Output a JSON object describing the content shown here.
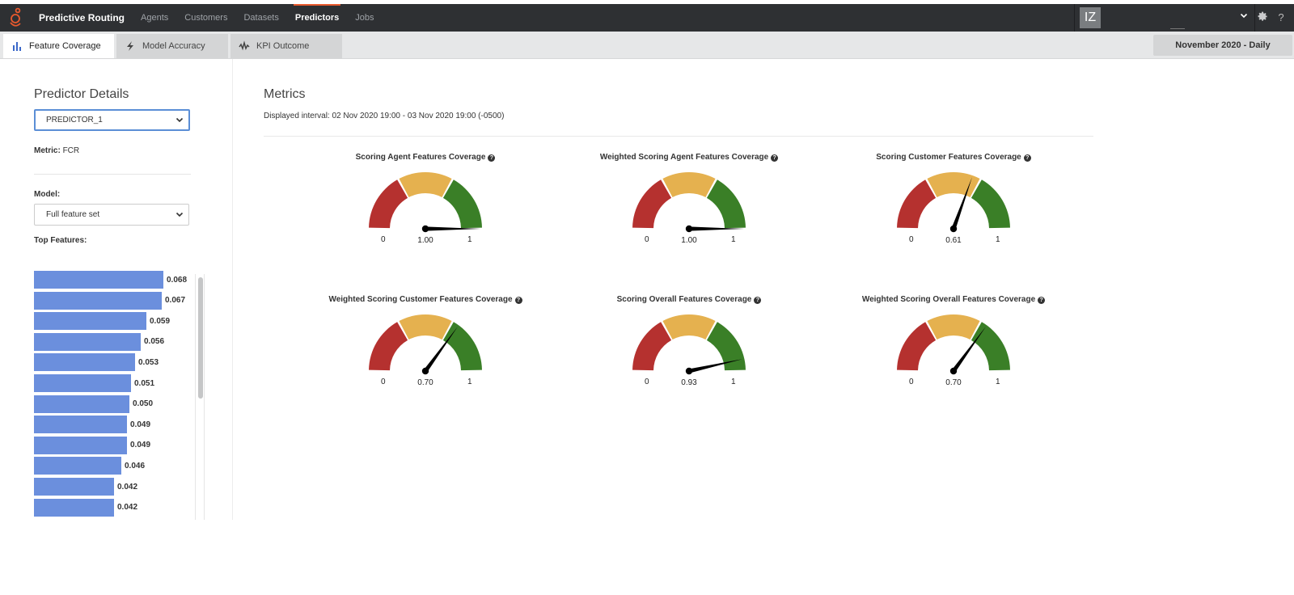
{
  "nav": {
    "app_title": "Predictive Routing",
    "items": [
      {
        "label": "Agents",
        "active": false
      },
      {
        "label": "Customers",
        "active": false
      },
      {
        "label": "Datasets",
        "active": false
      },
      {
        "label": "Predictors",
        "active": true
      },
      {
        "label": "Jobs",
        "active": false
      }
    ],
    "user_initials": "IZ",
    "icons": {
      "logo": "genesys-logo-icon",
      "settings": "gear-icon",
      "help": "help-icon",
      "user_menu": "chevron-down-icon"
    }
  },
  "tabs": [
    {
      "label": "Feature Coverage",
      "icon": "bar-chart-icon",
      "active": true
    },
    {
      "label": "Model Accuracy",
      "icon": "lightning-icon",
      "active": false
    },
    {
      "label": "KPI Outcome",
      "icon": "waveform-icon",
      "active": false
    }
  ],
  "date_range": "November 2020 - Daily",
  "predictor": {
    "heading": "Predictor Details",
    "selected": "PREDICTOR_1",
    "metric_label": "Metric:",
    "metric_value": "FCR",
    "model_label": "Model:",
    "model_selected": "Full feature set",
    "top_features_label": "Top Features:",
    "top_features": [
      0.068,
      0.067,
      0.059,
      0.056,
      0.053,
      0.051,
      0.05,
      0.049,
      0.049,
      0.046,
      0.042,
      0.042
    ],
    "top_features_labels": [
      "0.068",
      "0.067",
      "0.059",
      "0.056",
      "0.053",
      "0.051",
      "0.050",
      "0.049",
      "0.049",
      "0.046",
      "0.042",
      "0.042"
    ],
    "bar_color": "#6b8fdd"
  },
  "metrics": {
    "heading": "Metrics",
    "interval": "Displayed interval: 02 Nov 2020 19:00 - 03 Nov 2020 19:00 (-0500)",
    "gauge_colors": {
      "low": "#b5312f",
      "mid": "#e5b14f",
      "high": "#3a7f27"
    },
    "gauges": [
      {
        "title": "Scoring Agent Features Coverage",
        "value": 1.0,
        "value_label": "1.00",
        "min": "0",
        "max": "1"
      },
      {
        "title": "Weighted Scoring Agent Features Coverage",
        "value": 1.0,
        "value_label": "1.00",
        "min": "0",
        "max": "1"
      },
      {
        "title": "Scoring Customer Features Coverage",
        "value": 0.61,
        "value_label": "0.61",
        "min": "0",
        "max": "1"
      },
      {
        "title": "Weighted Scoring Customer Features Coverage",
        "value": 0.7,
        "value_label": "0.70",
        "min": "0",
        "max": "1"
      },
      {
        "title": "Scoring Overall Features Coverage",
        "value": 0.93,
        "value_label": "0.93",
        "min": "0",
        "max": "1"
      },
      {
        "title": "Weighted Scoring Overall Features Coverage",
        "value": 0.7,
        "value_label": "0.70",
        "min": "0",
        "max": "1"
      }
    ]
  }
}
